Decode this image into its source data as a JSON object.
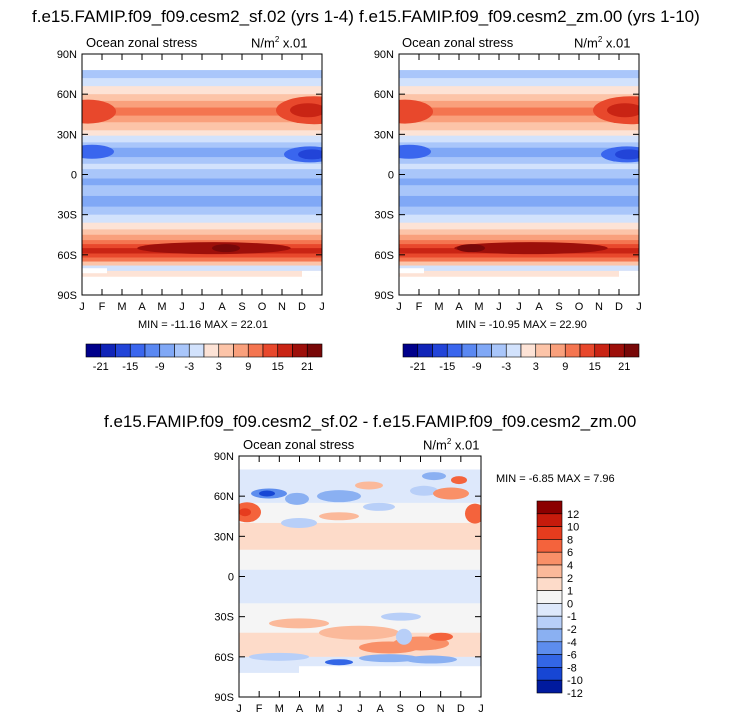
{
  "chart_data": [
    {
      "type": "heatmap",
      "title": "f.e15.FAMIP.f09_f09.cesm2_sf.02 (yrs 1-4)",
      "left_label": "Ocean zonal stress",
      "right_label": "N/m",
      "right_label_sup": "2",
      "right_label_suffix": " x.01",
      "stats": "MIN = -11.16 MAX =  22.01",
      "xticks": [
        "J",
        "F",
        "M",
        "A",
        "M",
        "J",
        "J",
        "A",
        "S",
        "O",
        "N",
        "D",
        "J"
      ],
      "yticks": [
        "90N",
        "60N",
        "30N",
        "0",
        "30S",
        "60S",
        "90S"
      ],
      "ylim": [
        -90,
        90
      ],
      "colorbar_labels": [
        "-21",
        "-15",
        "-9",
        "-3",
        "3",
        "9",
        "15",
        "21"
      ]
    },
    {
      "type": "heatmap",
      "title": "f.e15.FAMIP.f09_f09.cesm2_zm.00 (yrs 1-10)",
      "left_label": "Ocean zonal stress",
      "right_label": "N/m",
      "right_label_sup": "2",
      "right_label_suffix": " x.01",
      "stats": "MIN = -10.95 MAX =  22.90",
      "xticks": [
        "J",
        "F",
        "M",
        "A",
        "M",
        "J",
        "J",
        "A",
        "S",
        "O",
        "N",
        "D",
        "J"
      ],
      "yticks": [
        "90N",
        "60N",
        "30N",
        "0",
        "30S",
        "60S",
        "90S"
      ],
      "ylim": [
        -90,
        90
      ],
      "colorbar_labels": [
        "-21",
        "-15",
        "-9",
        "-3",
        "3",
        "9",
        "15",
        "21"
      ]
    },
    {
      "type": "heatmap",
      "title": "f.e15.FAMIP.f09_f09.cesm2_sf.02 - f.e15.FAMIP.f09_f09.cesm2_zm.00",
      "left_label": "Ocean zonal stress",
      "right_label": "N/m",
      "right_label_sup": "2",
      "right_label_suffix": " x.01",
      "stats": "MIN =  -6.85 MAX =   7.96",
      "xticks": [
        "J",
        "F",
        "M",
        "A",
        "M",
        "J",
        "J",
        "A",
        "S",
        "O",
        "N",
        "D",
        "J"
      ],
      "yticks": [
        "90N",
        "60N",
        "30N",
        "0",
        "30S",
        "60S",
        "90S"
      ],
      "ylim": [
        -90,
        90
      ],
      "colorbar_labels": [
        "12",
        "10",
        "8",
        "6",
        "4",
        "2",
        "1",
        "0",
        "-1",
        "-2",
        "-4",
        "-6",
        "-8",
        "-10",
        "-12"
      ]
    }
  ],
  "colors": {
    "scale": [
      "#00008b",
      "#1024b8",
      "#2244d8",
      "#3a66ee",
      "#5a88f2",
      "#80a8f6",
      "#a9c6fa",
      "#d2e2fc",
      "#fde3d6",
      "#fcc4a8",
      "#f9a07c",
      "#f47550",
      "#e8482c",
      "#c92414",
      "#9d0f0a",
      "#780808"
    ],
    "diff_scale": [
      "#8b0000",
      "#c61b0c",
      "#e63c1e",
      "#f4633c",
      "#f99068",
      "#fbb99a",
      "#fddbc9",
      "#f5f5f5",
      "#dde8fb",
      "#b8cff8",
      "#8ab0f2",
      "#5d8dee",
      "#3366e6",
      "#1746d4",
      "#001a9e"
    ]
  }
}
